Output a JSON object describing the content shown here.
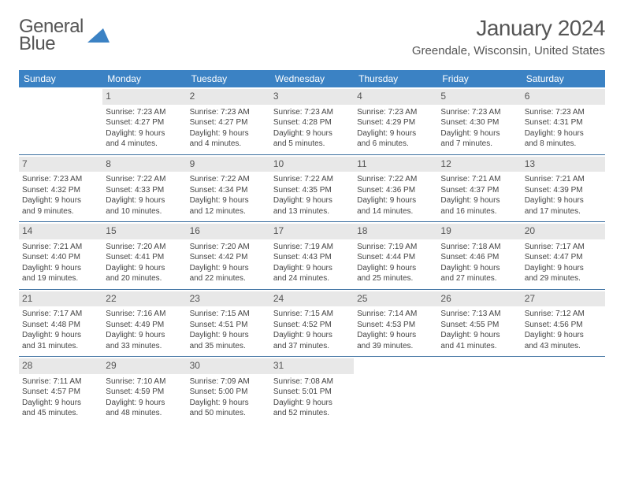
{
  "logo": {
    "line1": "General",
    "line2": "Blue"
  },
  "title": "January 2024",
  "location": "Greendale, Wisconsin, United States",
  "header_bg": "#3b82c4",
  "row_divider": "#3b6fa0",
  "daynum_bg": "#e8e8e8",
  "weekdays": [
    "Sunday",
    "Monday",
    "Tuesday",
    "Wednesday",
    "Thursday",
    "Friday",
    "Saturday"
  ],
  "weeks": [
    [
      null,
      {
        "n": "1",
        "sr": "Sunrise: 7:23 AM",
        "ss": "Sunset: 4:27 PM",
        "d1": "Daylight: 9 hours",
        "d2": "and 4 minutes."
      },
      {
        "n": "2",
        "sr": "Sunrise: 7:23 AM",
        "ss": "Sunset: 4:27 PM",
        "d1": "Daylight: 9 hours",
        "d2": "and 4 minutes."
      },
      {
        "n": "3",
        "sr": "Sunrise: 7:23 AM",
        "ss": "Sunset: 4:28 PM",
        "d1": "Daylight: 9 hours",
        "d2": "and 5 minutes."
      },
      {
        "n": "4",
        "sr": "Sunrise: 7:23 AM",
        "ss": "Sunset: 4:29 PM",
        "d1": "Daylight: 9 hours",
        "d2": "and 6 minutes."
      },
      {
        "n": "5",
        "sr": "Sunrise: 7:23 AM",
        "ss": "Sunset: 4:30 PM",
        "d1": "Daylight: 9 hours",
        "d2": "and 7 minutes."
      },
      {
        "n": "6",
        "sr": "Sunrise: 7:23 AM",
        "ss": "Sunset: 4:31 PM",
        "d1": "Daylight: 9 hours",
        "d2": "and 8 minutes."
      }
    ],
    [
      {
        "n": "7",
        "sr": "Sunrise: 7:23 AM",
        "ss": "Sunset: 4:32 PM",
        "d1": "Daylight: 9 hours",
        "d2": "and 9 minutes."
      },
      {
        "n": "8",
        "sr": "Sunrise: 7:22 AM",
        "ss": "Sunset: 4:33 PM",
        "d1": "Daylight: 9 hours",
        "d2": "and 10 minutes."
      },
      {
        "n": "9",
        "sr": "Sunrise: 7:22 AM",
        "ss": "Sunset: 4:34 PM",
        "d1": "Daylight: 9 hours",
        "d2": "and 12 minutes."
      },
      {
        "n": "10",
        "sr": "Sunrise: 7:22 AM",
        "ss": "Sunset: 4:35 PM",
        "d1": "Daylight: 9 hours",
        "d2": "and 13 minutes."
      },
      {
        "n": "11",
        "sr": "Sunrise: 7:22 AM",
        "ss": "Sunset: 4:36 PM",
        "d1": "Daylight: 9 hours",
        "d2": "and 14 minutes."
      },
      {
        "n": "12",
        "sr": "Sunrise: 7:21 AM",
        "ss": "Sunset: 4:37 PM",
        "d1": "Daylight: 9 hours",
        "d2": "and 16 minutes."
      },
      {
        "n": "13",
        "sr": "Sunrise: 7:21 AM",
        "ss": "Sunset: 4:39 PM",
        "d1": "Daylight: 9 hours",
        "d2": "and 17 minutes."
      }
    ],
    [
      {
        "n": "14",
        "sr": "Sunrise: 7:21 AM",
        "ss": "Sunset: 4:40 PM",
        "d1": "Daylight: 9 hours",
        "d2": "and 19 minutes."
      },
      {
        "n": "15",
        "sr": "Sunrise: 7:20 AM",
        "ss": "Sunset: 4:41 PM",
        "d1": "Daylight: 9 hours",
        "d2": "and 20 minutes."
      },
      {
        "n": "16",
        "sr": "Sunrise: 7:20 AM",
        "ss": "Sunset: 4:42 PM",
        "d1": "Daylight: 9 hours",
        "d2": "and 22 minutes."
      },
      {
        "n": "17",
        "sr": "Sunrise: 7:19 AM",
        "ss": "Sunset: 4:43 PM",
        "d1": "Daylight: 9 hours",
        "d2": "and 24 minutes."
      },
      {
        "n": "18",
        "sr": "Sunrise: 7:19 AM",
        "ss": "Sunset: 4:44 PM",
        "d1": "Daylight: 9 hours",
        "d2": "and 25 minutes."
      },
      {
        "n": "19",
        "sr": "Sunrise: 7:18 AM",
        "ss": "Sunset: 4:46 PM",
        "d1": "Daylight: 9 hours",
        "d2": "and 27 minutes."
      },
      {
        "n": "20",
        "sr": "Sunrise: 7:17 AM",
        "ss": "Sunset: 4:47 PM",
        "d1": "Daylight: 9 hours",
        "d2": "and 29 minutes."
      }
    ],
    [
      {
        "n": "21",
        "sr": "Sunrise: 7:17 AM",
        "ss": "Sunset: 4:48 PM",
        "d1": "Daylight: 9 hours",
        "d2": "and 31 minutes."
      },
      {
        "n": "22",
        "sr": "Sunrise: 7:16 AM",
        "ss": "Sunset: 4:49 PM",
        "d1": "Daylight: 9 hours",
        "d2": "and 33 minutes."
      },
      {
        "n": "23",
        "sr": "Sunrise: 7:15 AM",
        "ss": "Sunset: 4:51 PM",
        "d1": "Daylight: 9 hours",
        "d2": "and 35 minutes."
      },
      {
        "n": "24",
        "sr": "Sunrise: 7:15 AM",
        "ss": "Sunset: 4:52 PM",
        "d1": "Daylight: 9 hours",
        "d2": "and 37 minutes."
      },
      {
        "n": "25",
        "sr": "Sunrise: 7:14 AM",
        "ss": "Sunset: 4:53 PM",
        "d1": "Daylight: 9 hours",
        "d2": "and 39 minutes."
      },
      {
        "n": "26",
        "sr": "Sunrise: 7:13 AM",
        "ss": "Sunset: 4:55 PM",
        "d1": "Daylight: 9 hours",
        "d2": "and 41 minutes."
      },
      {
        "n": "27",
        "sr": "Sunrise: 7:12 AM",
        "ss": "Sunset: 4:56 PM",
        "d1": "Daylight: 9 hours",
        "d2": "and 43 minutes."
      }
    ],
    [
      {
        "n": "28",
        "sr": "Sunrise: 7:11 AM",
        "ss": "Sunset: 4:57 PM",
        "d1": "Daylight: 9 hours",
        "d2": "and 45 minutes."
      },
      {
        "n": "29",
        "sr": "Sunrise: 7:10 AM",
        "ss": "Sunset: 4:59 PM",
        "d1": "Daylight: 9 hours",
        "d2": "and 48 minutes."
      },
      {
        "n": "30",
        "sr": "Sunrise: 7:09 AM",
        "ss": "Sunset: 5:00 PM",
        "d1": "Daylight: 9 hours",
        "d2": "and 50 minutes."
      },
      {
        "n": "31",
        "sr": "Sunrise: 7:08 AM",
        "ss": "Sunset: 5:01 PM",
        "d1": "Daylight: 9 hours",
        "d2": "and 52 minutes."
      },
      null,
      null,
      null
    ]
  ]
}
